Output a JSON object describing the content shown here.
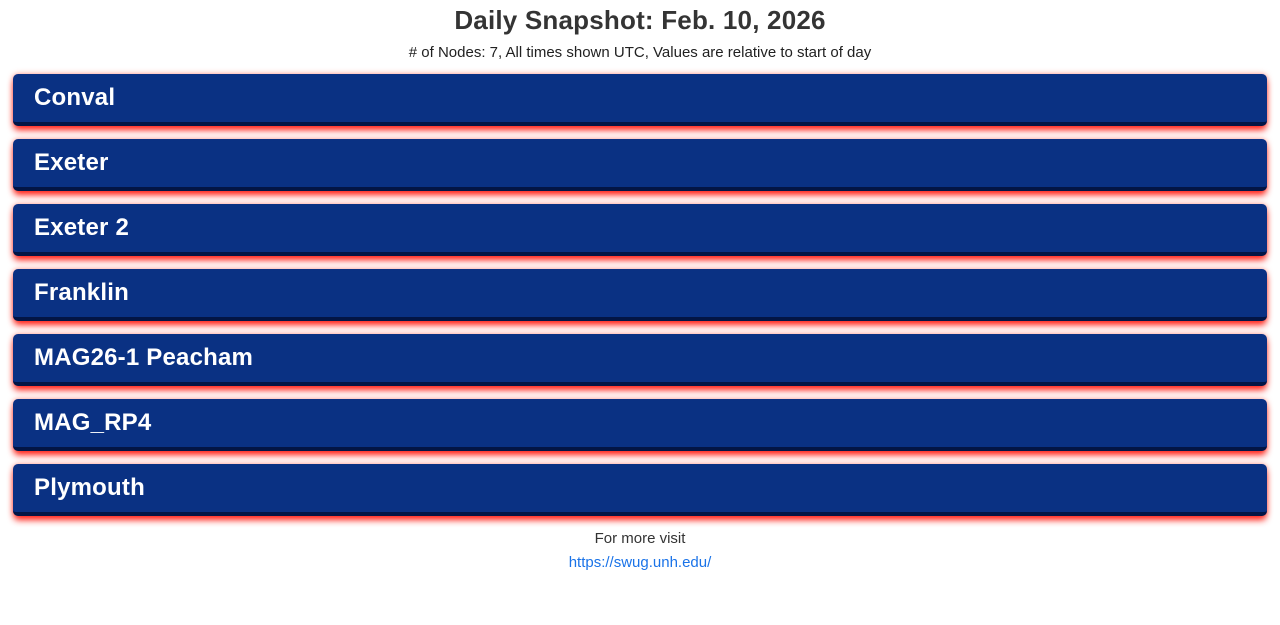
{
  "header": {
    "title": "Daily Snapshot: Feb. 10, 2026",
    "subtitle": "# of Nodes: 7, All times shown UTC, Values are relative to start of day"
  },
  "nodes": [
    {
      "label": "Conval"
    },
    {
      "label": "Exeter"
    },
    {
      "label": "Exeter 2"
    },
    {
      "label": "Franklin"
    },
    {
      "label": "MAG26-1 Peacham"
    },
    {
      "label": "MAG_RP4"
    },
    {
      "label": "Plymouth"
    }
  ],
  "footer": {
    "text": "For more visit",
    "link": "https://swug.unh.edu/"
  },
  "colors": {
    "bar_background": "#0a3183",
    "bar_bottom_edge": "#031545",
    "glow_red": "#ff2a1a",
    "bar_text": "#ffffff",
    "title_text": "#343434",
    "link_blue": "#1a73e8"
  }
}
